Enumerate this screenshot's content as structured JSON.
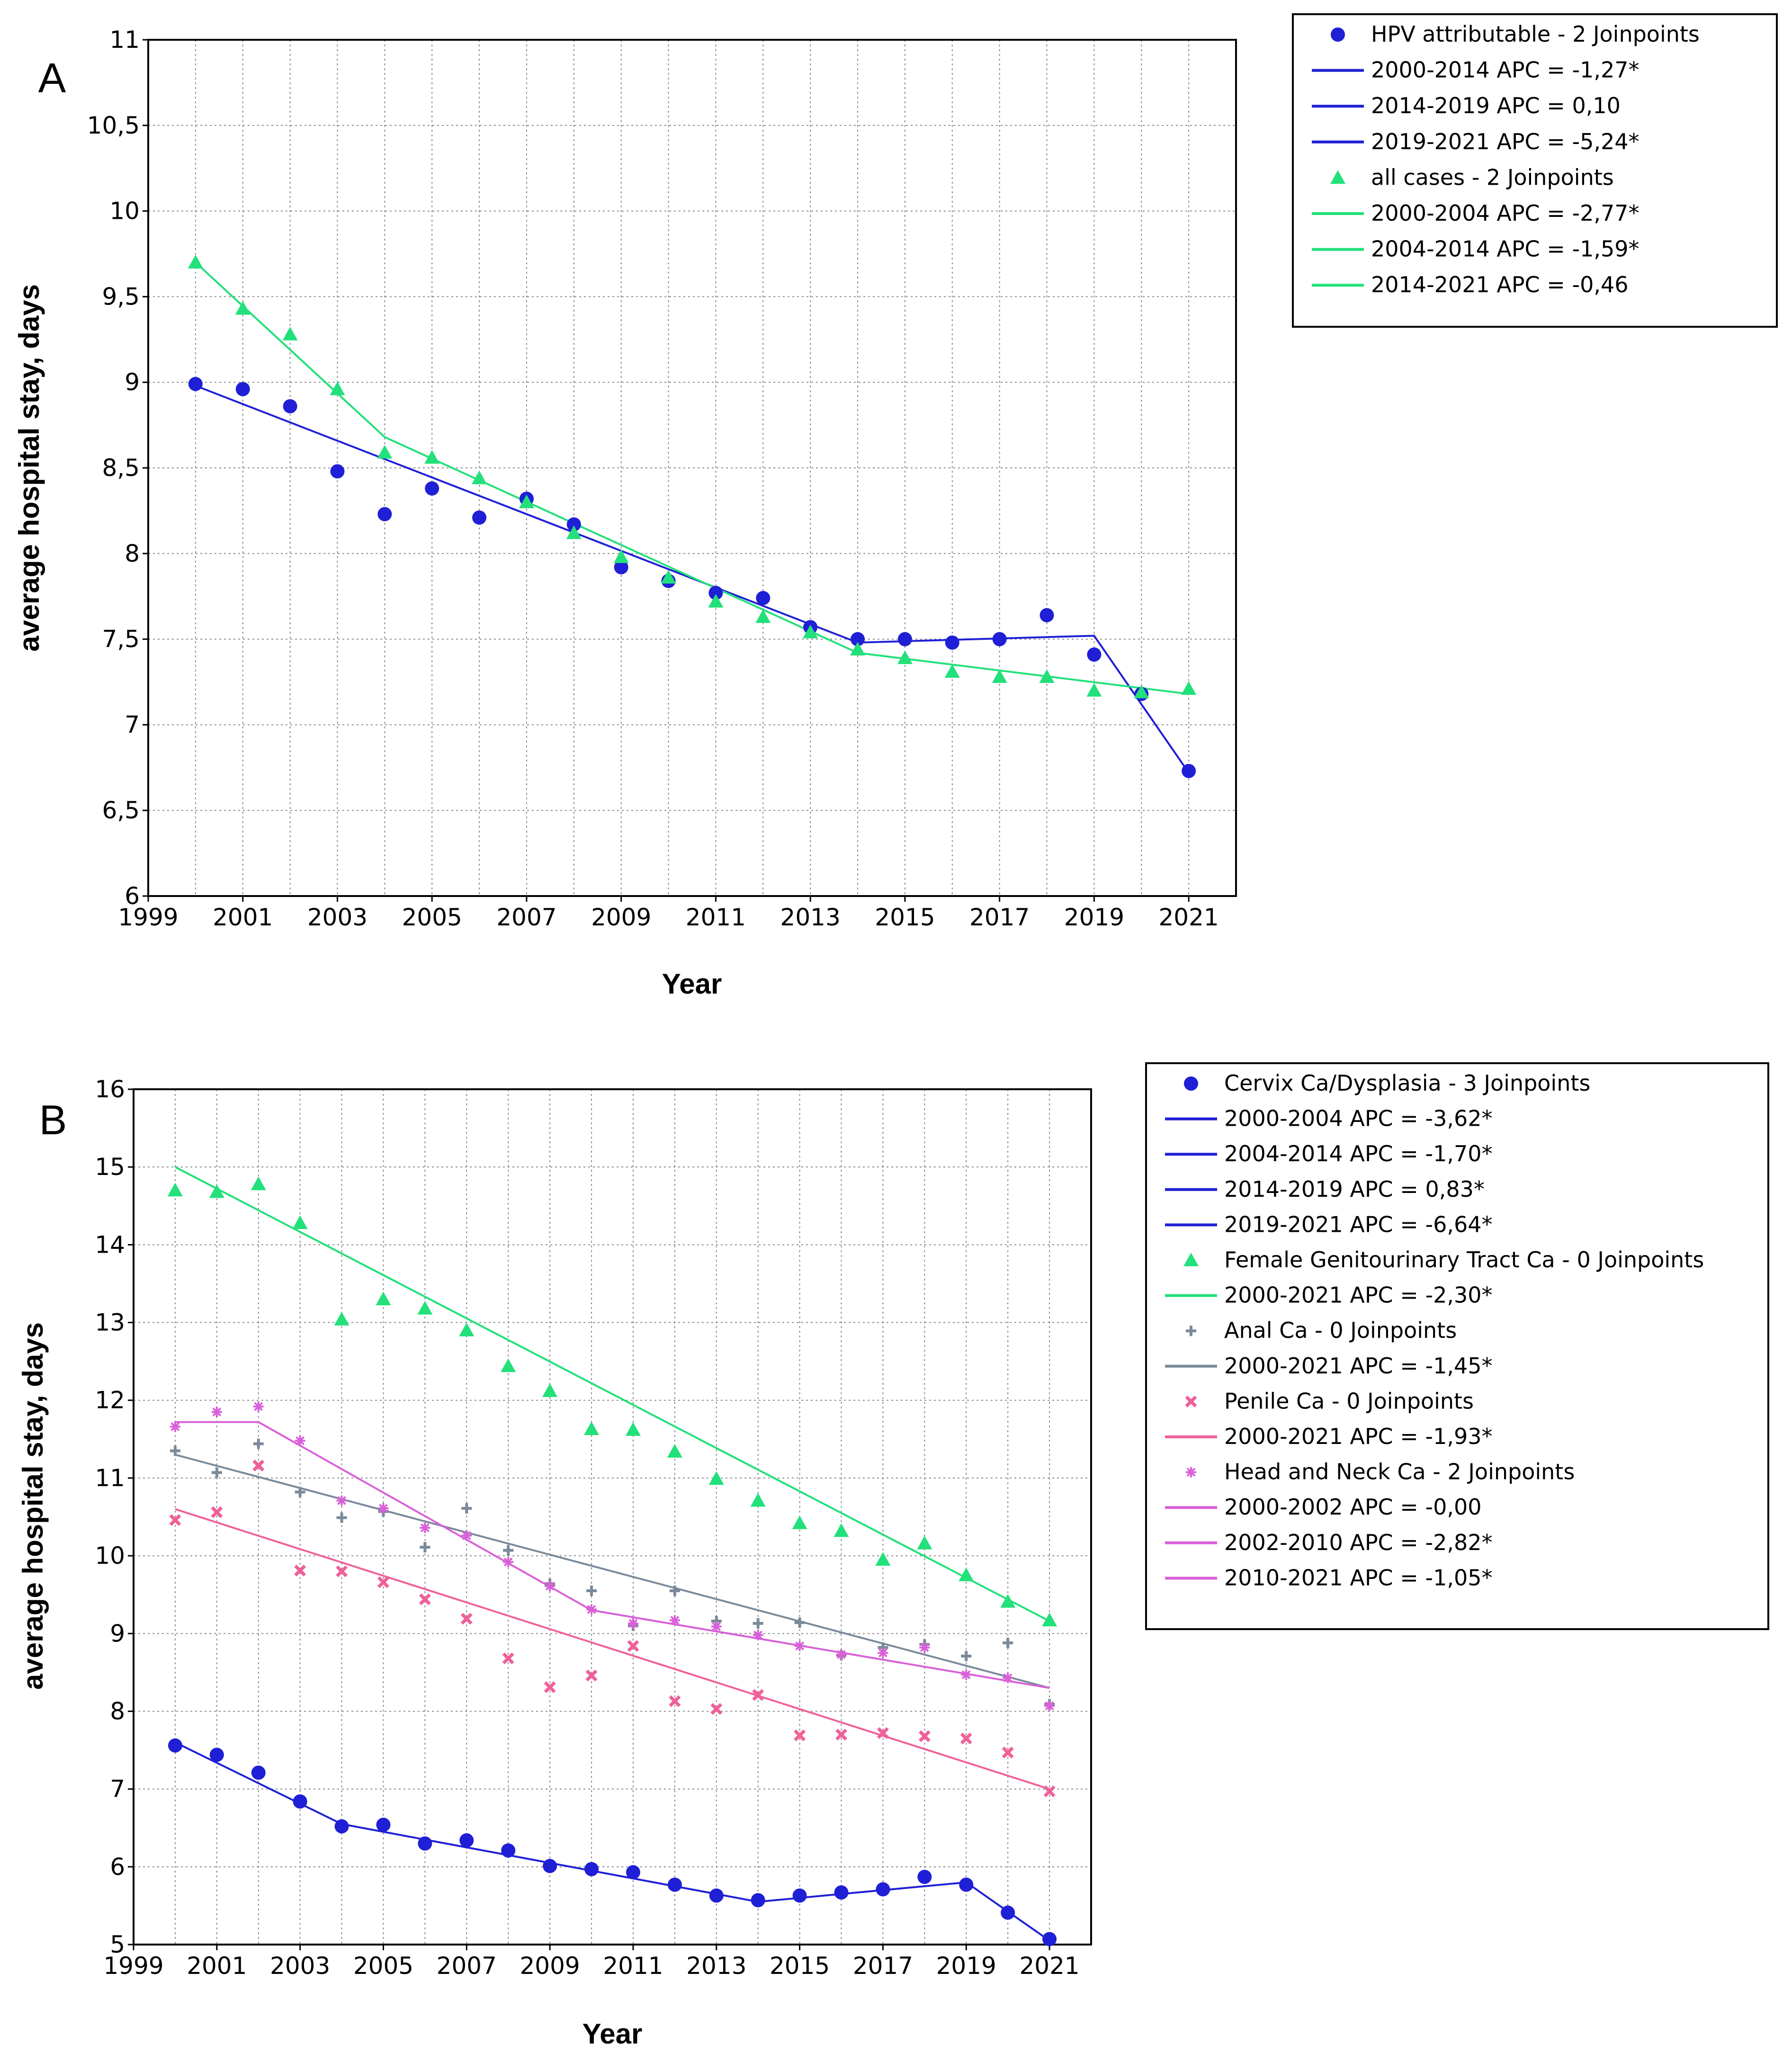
{
  "chart_data": [
    {
      "panel": "A",
      "type": "line",
      "xlabel": "Year",
      "ylabel": "average hospital stay, days",
      "xlim": [
        1999,
        2022
      ],
      "ylim": [
        6,
        11
      ],
      "xticks": [
        "1999",
        "2001",
        "2003",
        "2005",
        "2007",
        "2009",
        "2011",
        "2013",
        "2015",
        "2017",
        "2019",
        "2021"
      ],
      "yticks": [
        "6",
        "6,5",
        "7",
        "7,5",
        "8",
        "8,5",
        "9",
        "9,5",
        "10",
        "10,5",
        "11"
      ],
      "ytick_values": [
        6,
        6.5,
        7,
        7.5,
        8,
        8.5,
        9,
        9.5,
        10,
        10.5,
        11
      ],
      "grid": true,
      "legend_position": "outside-right-top",
      "series": [
        {
          "name": "HPV attributable - 2 Joinpoints",
          "color": "#1f1fd6",
          "marker": "circle",
          "x": [
            2000,
            2001,
            2002,
            2003,
            2004,
            2005,
            2006,
            2007,
            2008,
            2009,
            2010,
            2011,
            2012,
            2013,
            2014,
            2015,
            2016,
            2017,
            2018,
            2019,
            2020,
            2021
          ],
          "values": [
            8.99,
            8.96,
            8.86,
            8.48,
            8.23,
            8.38,
            8.21,
            8.32,
            8.17,
            7.92,
            7.84,
            7.77,
            7.74,
            7.57,
            7.5,
            7.5,
            7.48,
            7.5,
            7.64,
            7.41,
            7.18,
            6.73
          ],
          "fit": {
            "x": [
              2000,
              2014,
              2019,
              2021
            ],
            "y": [
              8.98,
              7.48,
              7.52,
              6.72
            ]
          },
          "segments": [
            "2000-2014 APC  =  -1,27*",
            "2014-2019 APC  =  0,10",
            "2019-2021 APC  =  -5,24*"
          ]
        },
        {
          "name": "all cases - 2 Joinpoints",
          "color": "#22e07a",
          "marker": "triangle",
          "x": [
            2000,
            2001,
            2002,
            2003,
            2004,
            2005,
            2006,
            2007,
            2008,
            2009,
            2010,
            2011,
            2012,
            2013,
            2014,
            2015,
            2016,
            2017,
            2018,
            2019,
            2020,
            2021
          ],
          "values": [
            9.7,
            9.43,
            9.28,
            8.96,
            8.59,
            8.56,
            8.44,
            8.3,
            8.12,
            7.98,
            7.86,
            7.72,
            7.63,
            7.54,
            7.44,
            7.39,
            7.31,
            7.28,
            7.28,
            7.2,
            7.19,
            7.21
          ],
          "fit": {
            "x": [
              2000,
              2004,
              2014,
              2021
            ],
            "y": [
              9.7,
              8.68,
              7.42,
              7.18
            ]
          },
          "segments": [
            "2000-2004 APC  =  -2,77*",
            "2004-2014 APC  =  -1,59*",
            "2014-2021 APC  =  -0,46"
          ]
        }
      ]
    },
    {
      "panel": "B",
      "type": "line",
      "xlabel": "Year",
      "ylabel": "average hospital stay, days",
      "xlim": [
        1999,
        2022
      ],
      "ylim": [
        5,
        16
      ],
      "xticks": [
        "1999",
        "2001",
        "2003",
        "2005",
        "2007",
        "2009",
        "2011",
        "2013",
        "2015",
        "2017",
        "2019",
        "2021"
      ],
      "yticks": [
        "5",
        "6",
        "7",
        "8",
        "9",
        "10",
        "11",
        "12",
        "13",
        "14",
        "15",
        "16"
      ],
      "ytick_values": [
        5,
        6,
        7,
        8,
        9,
        10,
        11,
        12,
        13,
        14,
        15,
        16
      ],
      "grid": true,
      "legend_position": "outside-right-top",
      "series": [
        {
          "name": "Cervix Ca/Dysplasia - 3 Joinpoints",
          "color": "#1f1fd6",
          "marker": "circle",
          "x": [
            2000,
            2001,
            2002,
            2003,
            2004,
            2005,
            2006,
            2007,
            2008,
            2009,
            2010,
            2011,
            2012,
            2013,
            2014,
            2015,
            2016,
            2017,
            2018,
            2019,
            2020,
            2021
          ],
          "values": [
            7.56,
            7.44,
            7.21,
            6.84,
            6.52,
            6.54,
            6.3,
            6.34,
            6.21,
            6.01,
            5.97,
            5.93,
            5.77,
            5.63,
            5.57,
            5.63,
            5.67,
            5.71,
            5.87,
            5.77,
            5.41,
            5.07
          ],
          "fit": {
            "x": [
              2000,
              2004,
              2014,
              2019,
              2021
            ],
            "y": [
              7.6,
              6.55,
              5.55,
              5.8,
              5.05
            ]
          },
          "segments": [
            "2000-2004 APC  =  -3,62*",
            "2004-2014 APC  =  -1,70*",
            "2014-2019 APC  =  0,83*",
            "2019-2021 APC  =  -6,64*"
          ]
        },
        {
          "name": "Female Genitourinary Tract Ca - 0 Joinpoints",
          "color": "#22e07a",
          "marker": "triangle",
          "x": [
            2000,
            2001,
            2002,
            2003,
            2004,
            2005,
            2006,
            2007,
            2008,
            2009,
            2010,
            2011,
            2012,
            2013,
            2014,
            2015,
            2016,
            2017,
            2018,
            2019,
            2020,
            2021
          ],
          "values": [
            14.7,
            14.68,
            14.78,
            14.28,
            13.04,
            13.3,
            13.18,
            12.9,
            12.44,
            12.12,
            11.63,
            11.62,
            11.34,
            10.99,
            10.71,
            10.42,
            10.32,
            9.95,
            10.16,
            9.75,
            9.41,
            9.17
          ],
          "fit": {
            "x": [
              2000,
              2021
            ],
            "y": [
              15.0,
              9.16
            ]
          },
          "segments": [
            "2000-2021 APC  =  -2,30*"
          ]
        },
        {
          "name": "Anal Ca - 0 Joinpoints",
          "color": "#7a8a9a",
          "marker": "plus",
          "x": [
            2000,
            2001,
            2002,
            2003,
            2004,
            2005,
            2006,
            2007,
            2008,
            2009,
            2010,
            2011,
            2012,
            2013,
            2014,
            2015,
            2016,
            2017,
            2018,
            2019,
            2020,
            2021
          ],
          "values": [
            11.35,
            11.07,
            11.44,
            10.82,
            10.49,
            10.57,
            10.11,
            10.61,
            10.07,
            9.64,
            9.55,
            9.1,
            9.55,
            9.16,
            9.13,
            9.14,
            8.72,
            8.82,
            8.86,
            8.71,
            8.88,
            8.09
          ],
          "fit": {
            "x": [
              2000,
              2021
            ],
            "y": [
              11.3,
              8.3
            ]
          },
          "segments": [
            "2000-2021 APC  =  -1,45*"
          ]
        },
        {
          "name": "Penile Ca - 0 Joinpoints",
          "color": "#f0609a",
          "marker": "x",
          "x": [
            2000,
            2001,
            2002,
            2003,
            2004,
            2005,
            2006,
            2007,
            2008,
            2009,
            2010,
            2011,
            2012,
            2013,
            2014,
            2015,
            2016,
            2017,
            2018,
            2019,
            2020,
            2021
          ],
          "values": [
            10.46,
            10.56,
            11.16,
            9.81,
            9.8,
            9.66,
            9.44,
            9.19,
            8.68,
            8.31,
            8.46,
            8.84,
            8.13,
            8.03,
            8.21,
            7.69,
            7.7,
            7.72,
            7.68,
            7.65,
            7.47,
            6.97
          ],
          "fit": {
            "x": [
              2000,
              2021
            ],
            "y": [
              10.6,
              7.0
            ]
          },
          "segments": [
            "2000-2021 APC  =  -1,93*"
          ]
        },
        {
          "name": "Head and Neck Ca - 2 Joinpoints",
          "color": "#d860d8",
          "marker": "star",
          "x": [
            2000,
            2001,
            2002,
            2003,
            2004,
            2005,
            2006,
            2007,
            2008,
            2009,
            2010,
            2011,
            2012,
            2013,
            2014,
            2015,
            2016,
            2017,
            2018,
            2019,
            2020,
            2021
          ],
          "values": [
            11.66,
            11.85,
            11.92,
            11.48,
            10.71,
            10.61,
            10.36,
            10.26,
            9.92,
            9.61,
            9.31,
            9.13,
            9.17,
            9.09,
            8.98,
            8.84,
            8.73,
            8.75,
            8.82,
            8.47,
            8.43,
            8.07
          ],
          "fit": {
            "x": [
              2000,
              2002,
              2010,
              2021
            ],
            "y": [
              11.72,
              11.72,
              9.3,
              8.3
            ]
          },
          "segments": [
            "2000-2002 APC  =  -0,00",
            "2002-2010 APC  =  -2,82*",
            "2010-2021 APC  =  -1,05*"
          ]
        }
      ]
    }
  ]
}
